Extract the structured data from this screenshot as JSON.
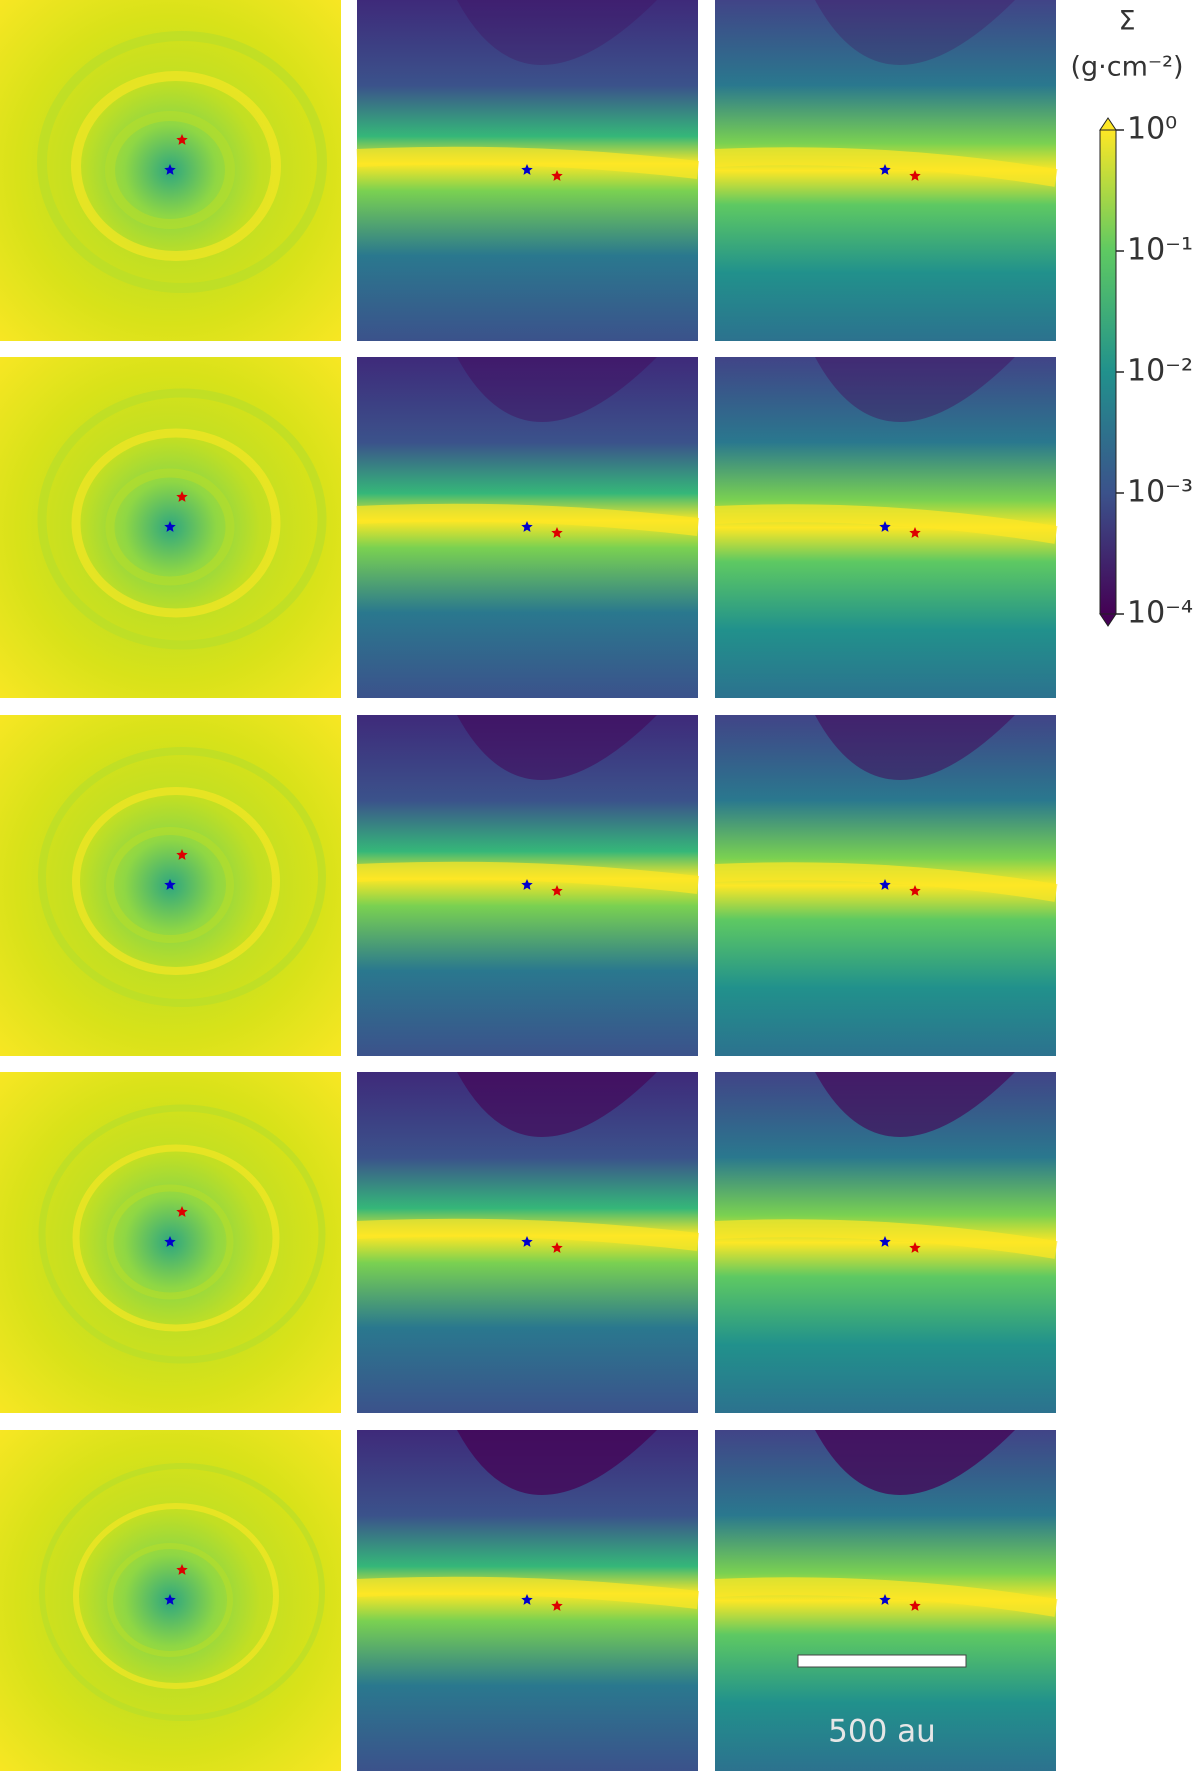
{
  "chart_data": {
    "type": "image-grid",
    "colorbar": {
      "symbol": "Σ",
      "unit": "(g·cm⁻²)",
      "log_scale": true,
      "colormap": "viridis",
      "lim": [
        0.0001,
        1
      ],
      "ticks": [
        {
          "value": 1,
          "label": "10⁰"
        },
        {
          "value": 0.1,
          "label": "10⁻¹"
        },
        {
          "value": 0.01,
          "label": "10⁻²"
        },
        {
          "value": 0.001,
          "label": "10⁻³"
        },
        {
          "value": 0.0001,
          "label": "10⁻⁴"
        }
      ]
    },
    "scale_bar": {
      "label": "500 au"
    }
  }
}
